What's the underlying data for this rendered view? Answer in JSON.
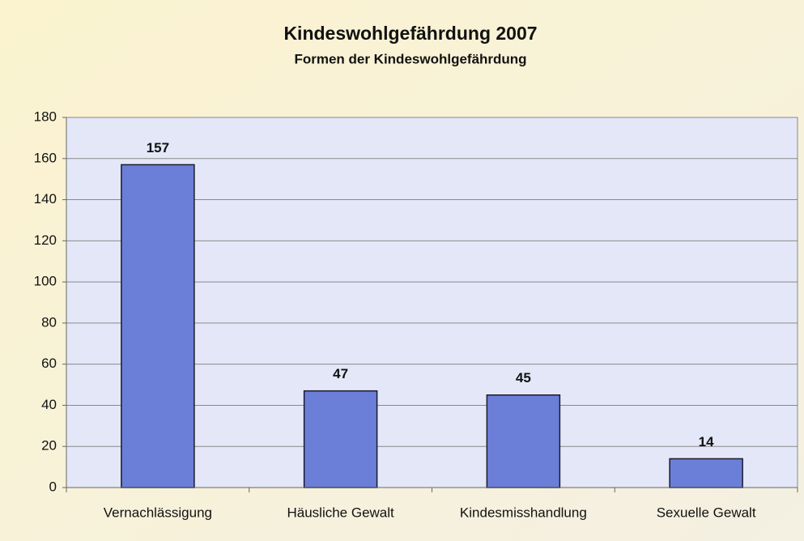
{
  "chart_data": {
    "type": "bar",
    "title": "Kindeswohlgefährdung 2007",
    "subtitle": "Formen der Kindeswohlgefährdung",
    "categories": [
      "Vernachlässigung",
      "Häusliche Gewalt",
      "Kindesmisshandlung",
      "Sexuelle Gewalt"
    ],
    "values": [
      157,
      47,
      45,
      14
    ],
    "color": "#6b7fd8",
    "ylim": [
      0,
      180
    ],
    "yticks": [
      0,
      20,
      40,
      60,
      80,
      100,
      120,
      140,
      160,
      180
    ],
    "grid": true
  }
}
